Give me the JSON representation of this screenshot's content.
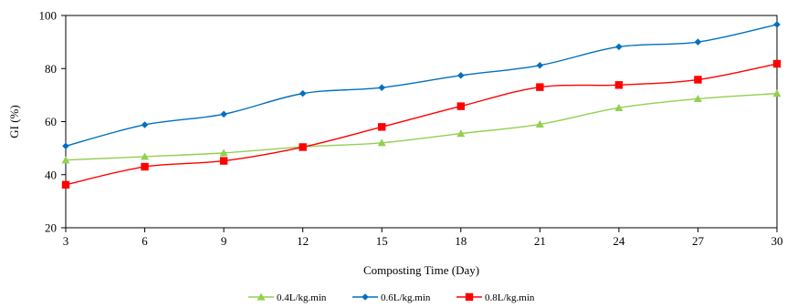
{
  "chart_data": {
    "type": "line",
    "title": "",
    "xlabel": "Composting Time (Day)",
    "ylabel": "GI (%)",
    "x": [
      3,
      6,
      9,
      12,
      15,
      18,
      21,
      24,
      27,
      30
    ],
    "xlim": [
      3,
      30
    ],
    "ylim": [
      20,
      100
    ],
    "x_ticks": [
      "3",
      "6",
      "9",
      "12",
      "15",
      "18",
      "21",
      "24",
      "27",
      "30"
    ],
    "y_ticks": [
      "20",
      "40",
      "60",
      "80",
      "100"
    ],
    "grid": false,
    "smooth": true,
    "legend_position": "bottom",
    "series": [
      {
        "name": "0.4L/kg.min",
        "color": "#92D050",
        "marker": "triangle",
        "values": [
          45.5,
          46.8,
          48.2,
          50.5,
          52.0,
          55.5,
          59.0,
          65.2,
          68.6,
          70.6
        ]
      },
      {
        "name": "0.6L/kg.min",
        "color": "#0070C0",
        "marker": "diamond",
        "values": [
          50.8,
          58.8,
          62.8,
          70.6,
          72.8,
          77.4,
          81.2,
          88.2,
          90.0,
          96.6
        ]
      },
      {
        "name": "0.8L/kg.min",
        "color": "#FF0000",
        "marker": "square",
        "values": [
          36.2,
          43.0,
          45.2,
          50.4,
          58.0,
          65.8,
          73.0,
          73.8,
          75.8,
          81.8
        ]
      }
    ]
  }
}
